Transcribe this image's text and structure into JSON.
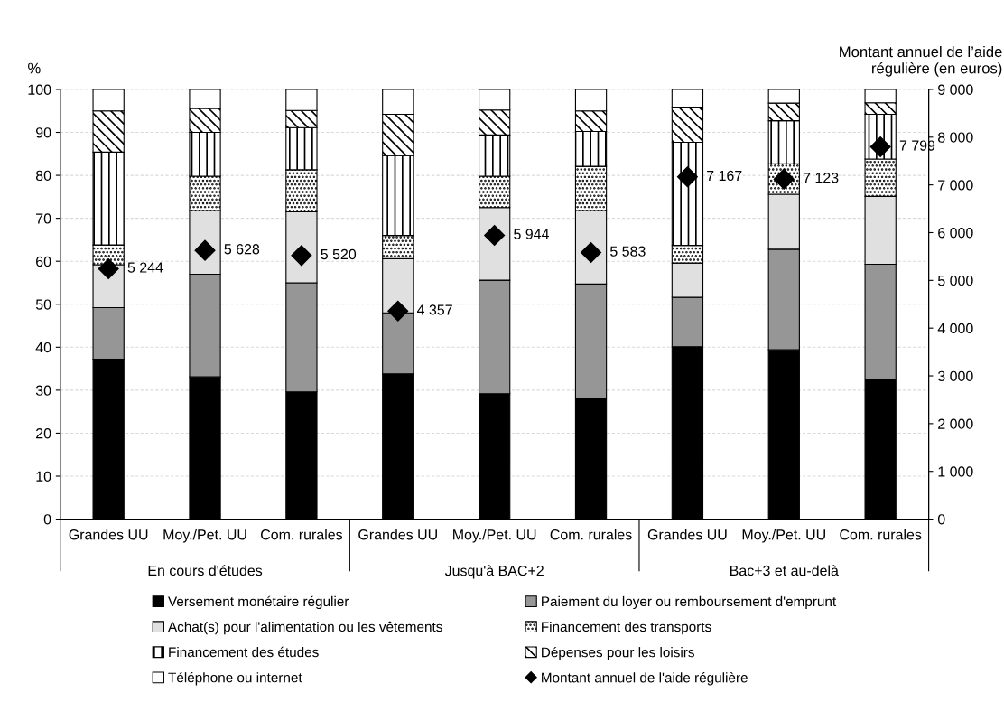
{
  "chart_data": {
    "type": "bar",
    "stacked": true,
    "categories": [
      "Grandes UU",
      "Moy./Pet. UU",
      "Com. rurales",
      "Grandes UU",
      "Moy./Pet. UU",
      "Com. rurales",
      "Grandes UU",
      "Moy./Pet. UU",
      "Com. rurales"
    ],
    "annotations": [
      "En cours d'études",
      "Jusqu'à BAC+2",
      "Bac+3 et au-delà"
    ],
    "ylabel": "%",
    "y2label": "Montant annuel de l’aide\nrégulière (en euros)",
    "ylim": [
      0,
      100
    ],
    "yticks": [
      0,
      10,
      20,
      30,
      40,
      50,
      60,
      70,
      80,
      90,
      100
    ],
    "y2lim": [
      0,
      9000
    ],
    "y2ticks": [
      0,
      {
        "value": 1000,
        "label": "1 000"
      },
      {
        "value": 2000,
        "label": "2 000"
      },
      {
        "value": 3000,
        "label": "3 000"
      },
      {
        "value": 4000,
        "label": "4 000"
      },
      {
        "value": 5000,
        "label": "5 000"
      },
      {
        "value": 6000,
        "label": "6 000"
      },
      {
        "value": 7000,
        "label": "7 000"
      },
      {
        "value": 8000,
        "label": "8 000"
      },
      {
        "value": 9000,
        "label": "9 000"
      }
    ],
    "grid": "y",
    "legend": "bottom",
    "series": [
      {
        "name": "Versement monétaire régulier",
        "color": "#000000",
        "values": [
          37.2,
          33.1,
          29.6,
          33.8,
          29.2,
          28.2,
          40.1,
          39.4,
          32.6
        ]
      },
      {
        "name": "Paiement du loyer ou remboursement d'emprunt",
        "color": "#969696",
        "values": [
          12.0,
          23.9,
          25.4,
          14.2,
          26.4,
          26.5,
          11.5,
          23.4,
          26.7
        ]
      },
      {
        "name": "Achat(s) pour l'alimentation ou les vêtements",
        "color": "#e0e0e0",
        "values": [
          10.0,
          14.8,
          16.5,
          12.6,
          16.9,
          17.1,
          8.0,
          12.8,
          15.8
        ]
      },
      {
        "name": "Financement des transports",
        "color": "#000000",
        "values": [
          4.6,
          8.0,
          9.8,
          5.4,
          7.3,
          10.3,
          4.1,
          7.1,
          8.7
        ]
      },
      {
        "name": "Financement des études",
        "color": "#000000",
        "values": [
          21.6,
          10.2,
          9.8,
          18.6,
          9.6,
          8.1,
          24.0,
          10.0,
          10.4
        ]
      },
      {
        "name": "Dépenses pour les loisirs",
        "color": "#000000",
        "values": [
          9.6,
          5.6,
          4.0,
          9.6,
          5.8,
          4.8,
          8.2,
          4.1,
          2.7
        ]
      },
      {
        "name": "Téléphone ou internet",
        "color": "#ffffff",
        "values": [
          5.0,
          4.4,
          4.9,
          5.8,
          4.8,
          5.0,
          4.1,
          3.2,
          3.1
        ]
      },
      {
        "name": "Montant annuel de l'aide régulière",
        "type": "scatter",
        "axis": "y2",
        "marker": "diamond",
        "color": "#000000",
        "data_labels": true,
        "value_labels": [
          "5 244",
          "5 628",
          "5 520",
          "4 357",
          "5 944",
          "5 583",
          "7 167",
          "7 123",
          "7 799"
        ],
        "values": [
          5244,
          5628,
          5520,
          4357,
          5944,
          5583,
          7167,
          7123,
          7799
        ]
      }
    ]
  }
}
